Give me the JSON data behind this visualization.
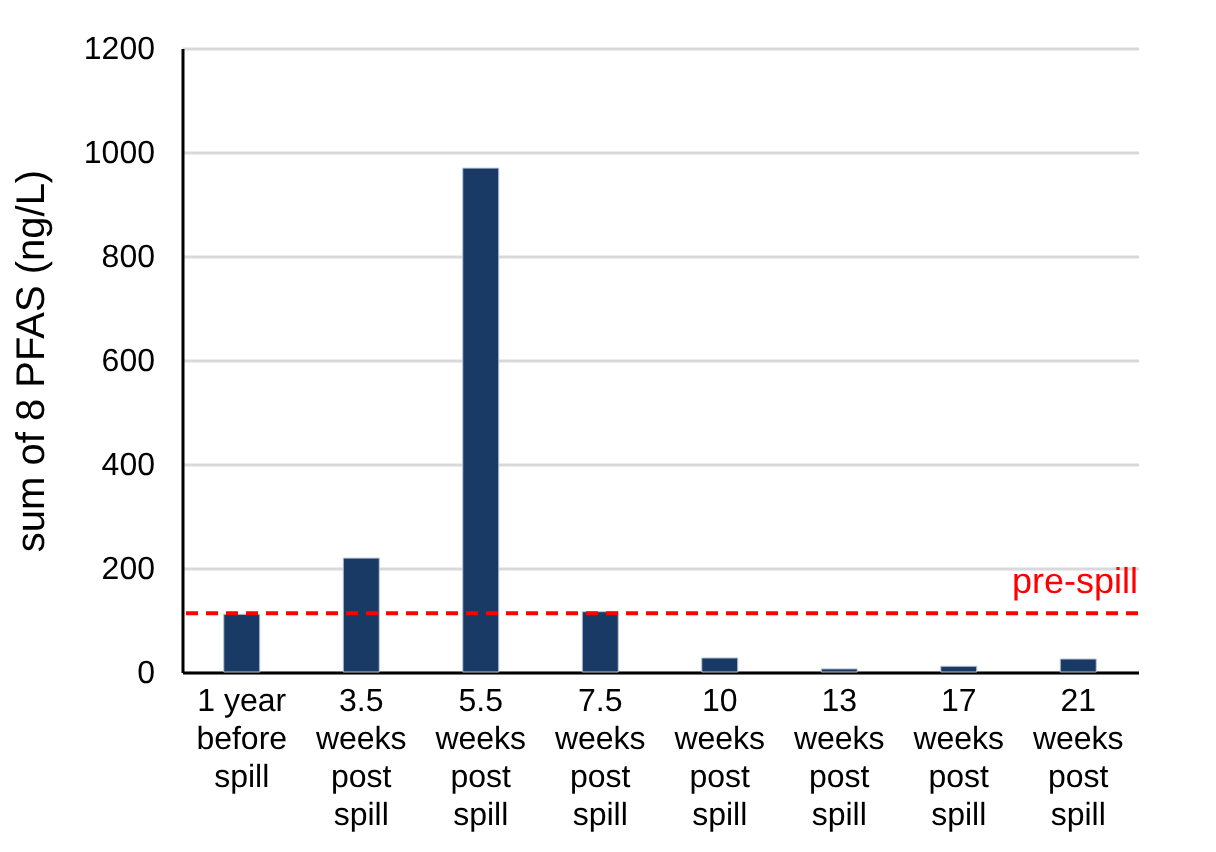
{
  "chart_data": {
    "type": "bar",
    "ylabel": "sum of 8 PFAS (ng/L)",
    "categories": [
      "1 year\nbefore\nspill",
      "3.5\nweeks\npost\nspill",
      "5.5\nweeks\npost\nspill",
      "7.5\nweeks\npost\nspill",
      "10\nweeks\npost\nspill",
      "13\nweeks\npost\nspill",
      "17\nweeks\npost\nspill",
      "21\nweeks\npost\nspill"
    ],
    "values": [
      111,
      219,
      969,
      116,
      27,
      6,
      11,
      25
    ],
    "color": "#1a3a66",
    "ylim": [
      0,
      1200
    ],
    "yticks": [
      0,
      200,
      400,
      600,
      800,
      1000,
      1200
    ],
    "grid": "y",
    "ref_lines": [
      {
        "axis": "y",
        "value": 113,
        "label": "pre-spill",
        "color": "#ff0000",
        "line_style": "dashed"
      }
    ]
  }
}
